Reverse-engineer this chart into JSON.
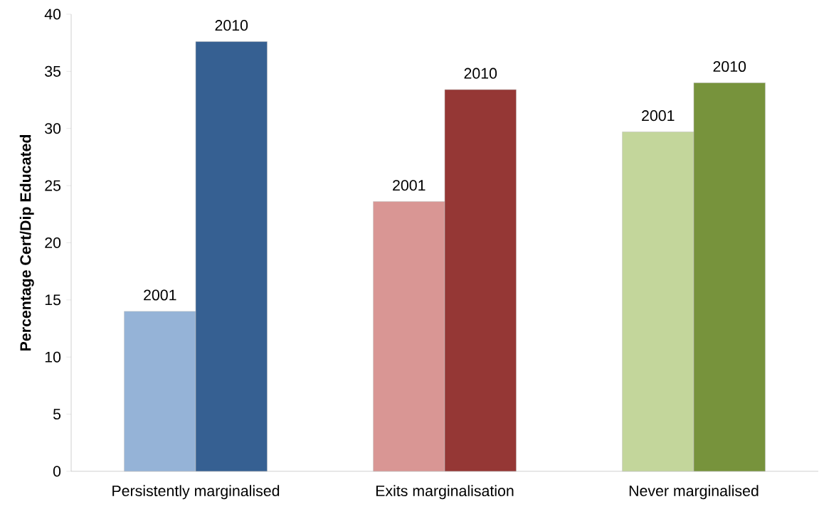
{
  "chart_data": {
    "type": "bar",
    "ylabel": "Percentage Cert/Dip Educated",
    "categories": [
      "Persistently marginalised",
      "Exits marginalisation",
      "Never marginalised"
    ],
    "series": [
      {
        "name": "2001",
        "colors": [
          "#95b3d7",
          "#d99694",
          "#c3d69b"
        ],
        "values": [
          14.0,
          23.6,
          29.7
        ]
      },
      {
        "name": "2010",
        "colors": [
          "#366092",
          "#953735",
          "#77933c"
        ],
        "values": [
          37.6,
          33.4,
          34.0
        ]
      }
    ],
    "ylim": [
      0,
      40
    ],
    "yticks": [
      0,
      5,
      10,
      15,
      20,
      25,
      30,
      35,
      40
    ]
  }
}
